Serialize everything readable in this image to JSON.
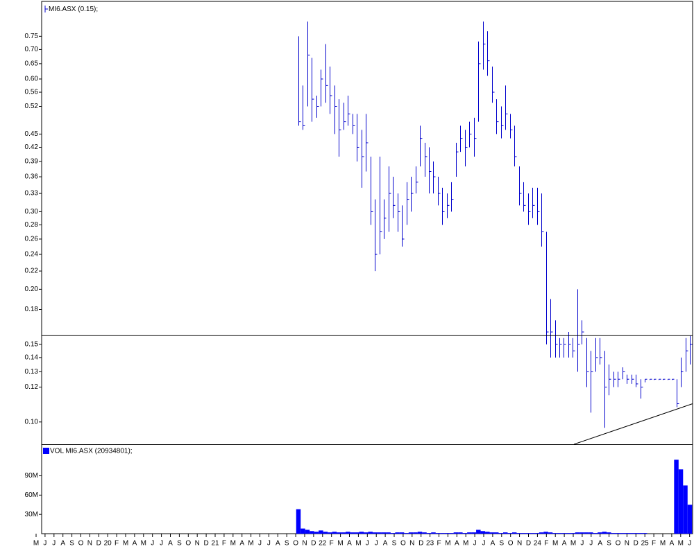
{
  "chart_data": [
    {
      "type": "hlc",
      "legend": "MI6.ASX (0.15);",
      "color": "#0000cc",
      "log_scale": true,
      "ylim": [
        0.089,
        0.9
      ],
      "yticks": [
        0.75,
        {
          "value": 0.7,
          "label": "0.70"
        },
        0.65,
        {
          "value": 0.6,
          "label": "0.60"
        },
        0.56,
        0.52,
        0.45,
        0.42,
        0.39,
        0.36,
        0.33,
        {
          "value": 0.3,
          "label": "0.30"
        },
        0.28,
        0.26,
        0.24,
        0.22,
        {
          "value": 0.2,
          "label": "0.20"
        },
        0.18,
        0.15,
        0.14,
        0.13,
        0.12,
        {
          "value": 0.1,
          "label": "0.10"
        }
      ],
      "high": [
        0.75,
        0.58,
        0.81,
        0.67,
        0.55,
        0.63,
        0.72,
        0.64,
        0.58,
        0.54,
        0.53,
        0.55,
        0.5,
        0.5,
        0.46,
        0.5,
        0.4,
        0.32,
        0.4,
        0.32,
        0.38,
        0.36,
        0.33,
        0.31,
        0.35,
        0.36,
        0.38,
        0.47,
        0.43,
        0.42,
        0.39,
        0.36,
        0.34,
        0.33,
        0.35,
        0.43,
        0.47,
        0.46,
        0.48,
        0.49,
        0.73,
        0.81,
        0.77,
        0.64,
        0.54,
        0.52,
        0.58,
        0.5,
        0.47,
        0.38,
        0.35,
        0.33,
        0.34,
        0.34,
        0.33,
        0.27,
        0.19,
        0.17,
        0.155,
        0.155,
        0.16,
        0.155,
        0.2,
        0.17,
        0.155,
        0.145,
        0.155,
        0.155,
        0.145,
        0.135,
        0.13,
        0.13,
        0.133,
        0.128,
        0.128,
        0.128,
        0.125,
        0.125,
        0.125,
        0.125,
        0.125,
        0.125,
        0.125,
        0.125,
        0.125,
        0.14,
        0.155,
        0.157
      ],
      "low": [
        0.47,
        0.46,
        0.52,
        0.48,
        0.49,
        0.52,
        0.53,
        0.5,
        0.45,
        0.4,
        0.46,
        0.47,
        0.45,
        0.39,
        0.34,
        0.37,
        0.28,
        0.22,
        0.24,
        0.26,
        0.27,
        0.29,
        0.27,
        0.25,
        0.28,
        0.3,
        0.33,
        0.38,
        0.36,
        0.33,
        0.33,
        0.31,
        0.28,
        0.29,
        0.3,
        0.36,
        0.41,
        0.38,
        0.42,
        0.4,
        0.48,
        0.63,
        0.61,
        0.53,
        0.45,
        0.44,
        0.46,
        0.44,
        0.38,
        0.31,
        0.3,
        0.28,
        0.29,
        0.28,
        0.25,
        0.15,
        0.14,
        0.14,
        0.14,
        0.14,
        0.14,
        0.14,
        0.13,
        0.15,
        0.12,
        0.105,
        0.13,
        0.135,
        0.097,
        0.115,
        0.12,
        0.12,
        0.125,
        0.122,
        0.122,
        0.12,
        0.113,
        0.123,
        0.125,
        0.125,
        0.125,
        0.125,
        0.125,
        0.125,
        0.108,
        0.12,
        0.13,
        0.135
      ],
      "close": [
        0.48,
        0.47,
        0.68,
        0.54,
        0.52,
        0.6,
        0.58,
        0.55,
        0.52,
        0.46,
        0.48,
        0.5,
        0.47,
        0.42,
        0.4,
        0.43,
        0.3,
        0.24,
        0.27,
        0.29,
        0.33,
        0.31,
        0.3,
        0.26,
        0.32,
        0.33,
        0.35,
        0.44,
        0.4,
        0.37,
        0.36,
        0.33,
        0.3,
        0.31,
        0.32,
        0.41,
        0.44,
        0.42,
        0.45,
        0.44,
        0.65,
        0.72,
        0.66,
        0.56,
        0.48,
        0.47,
        0.5,
        0.46,
        0.4,
        0.33,
        0.31,
        0.3,
        0.31,
        0.3,
        0.27,
        0.16,
        0.16,
        0.15,
        0.15,
        0.15,
        0.15,
        0.145,
        0.15,
        0.16,
        0.13,
        0.13,
        0.14,
        0.14,
        0.12,
        0.125,
        0.125,
        0.125,
        0.13,
        0.125,
        0.125,
        0.122,
        0.12,
        0.125,
        0.125,
        0.125,
        0.125,
        0.125,
        0.125,
        0.125,
        0.11,
        0.13,
        0.145,
        0.15
      ],
      "hline": 0.157,
      "trendline": [
        0.089,
        0.11
      ]
    },
    {
      "type": "volume",
      "legend": "VOL MI6.ASX (20934801);",
      "color": "#0000ff",
      "ylim": [
        0,
        138000000
      ],
      "yticks": [
        {
          "value": 30000000,
          "label": "30M"
        },
        {
          "value": 60000000,
          "label": "60M"
        },
        {
          "value": 90000000,
          "label": "90M"
        }
      ],
      "values": [
        38000000,
        8000000,
        6000000,
        4000000,
        3000000,
        5000000,
        3000000,
        2000000,
        3000000,
        2000000,
        2000000,
        3000000,
        2000000,
        2000000,
        3000000,
        2000000,
        3000000,
        2000000,
        2000000,
        2000000,
        2000000,
        1000000,
        2000000,
        2000000,
        1000000,
        2000000,
        2000000,
        3000000,
        2000000,
        1000000,
        2000000,
        1000000,
        1000000,
        1000000,
        1000000,
        2000000,
        2000000,
        1000000,
        2000000,
        2000000,
        6000000,
        4000000,
        3000000,
        2000000,
        2000000,
        1000000,
        2000000,
        1000000,
        2000000,
        1000000,
        1000000,
        1000000,
        1000000,
        1000000,
        2000000,
        3000000,
        2000000,
        1000000,
        1000000,
        1000000,
        1000000,
        1000000,
        2000000,
        2000000,
        2000000,
        2000000,
        1000000,
        2000000,
        3000000,
        2000000,
        1000000,
        1000000,
        1000000,
        1000000,
        1000000,
        1000000,
        1000000,
        1000000,
        0,
        0,
        0,
        0,
        0,
        0,
        115000000,
        100000000,
        75000000,
        45000000
      ]
    }
  ],
  "x_axis": {
    "labels": [
      "M",
      "J",
      "J",
      "A",
      "S",
      "O",
      "N",
      "D",
      "20",
      "F",
      "M",
      "A",
      "M",
      "J",
      "J",
      "A",
      "S",
      "O",
      "N",
      "D",
      "21",
      "F",
      "M",
      "A",
      "M",
      "J",
      "J",
      "A",
      "S",
      "O",
      "N",
      "D",
      "22",
      "F",
      "M",
      "A",
      "M",
      "J",
      "J",
      "A",
      "S",
      "O",
      "N",
      "D",
      "23",
      "F",
      "M",
      "A",
      "M",
      "J",
      "J",
      "A",
      "S",
      "O",
      "N",
      "D",
      "24",
      "F",
      "M",
      "A",
      "M",
      "J",
      "J",
      "A",
      "S",
      "O",
      "N",
      "D",
      "25",
      "F",
      "M",
      "A",
      "M",
      "J"
    ]
  }
}
